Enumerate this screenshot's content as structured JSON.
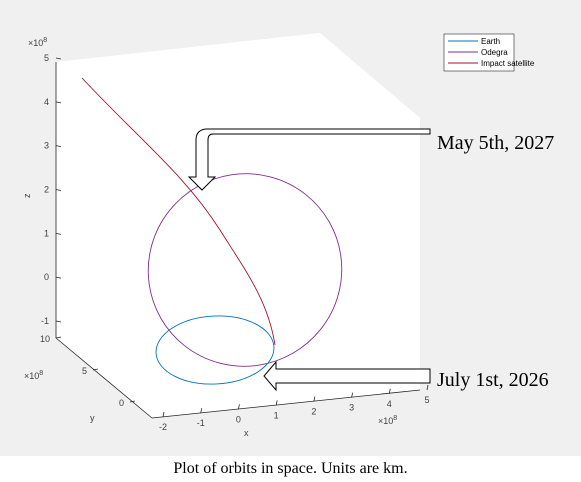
{
  "chart_data": {
    "type": "line3d",
    "title": "",
    "caption": "Plot of orbits in space. Units are km.",
    "xlabel": "x",
    "ylabel": "y",
    "zlabel": "z",
    "x_ticks": [
      "-2",
      "-1",
      "0",
      "1",
      "2",
      "3",
      "4",
      "5"
    ],
    "y_ticks": [
      "0",
      "5",
      "10"
    ],
    "z_ticks": [
      "-1",
      "0",
      "1",
      "2",
      "3",
      "4",
      "5"
    ],
    "x_exponent": "×10",
    "x_exponent_power": "8",
    "y_exponent": "×10",
    "y_exponent_power": "8",
    "z_exponent": "×10",
    "z_exponent_power": "8",
    "xlim": [
      -2,
      5
    ],
    "ylim": [
      0,
      10
    ],
    "zlim": [
      -1,
      5
    ],
    "legend": {
      "placement": "top-right",
      "entries": [
        {
          "name": "Earth",
          "color": "#0072BD"
        },
        {
          "name": "Odegra",
          "color": "#7E2F8E"
        },
        {
          "name": "Impact satellite",
          "color": "#A2142F"
        }
      ]
    },
    "annotations": [
      {
        "text": "May 5th, 2027",
        "target": "Odegra / Impact satellite intersection"
      },
      {
        "text": "July 1st, 2026",
        "target": "Earth orbit"
      }
    ]
  }
}
